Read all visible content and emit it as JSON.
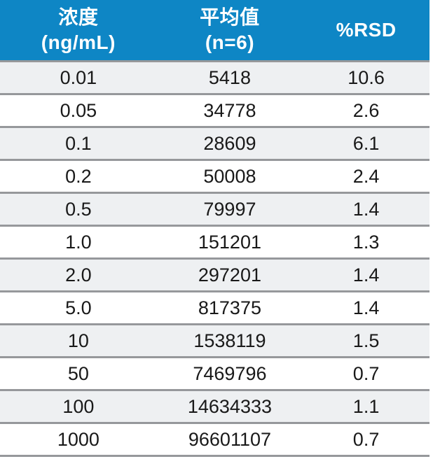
{
  "table": {
    "columns": [
      {
        "id": "concentration",
        "line1": "浓度",
        "line2": "(ng/mL)"
      },
      {
        "id": "mean",
        "line1": "平均值",
        "line2": "(n=6)"
      },
      {
        "id": "rsd",
        "line1": "%RSD",
        "line2": ""
      }
    ],
    "rows": [
      {
        "concentration": "0.01",
        "mean": "5418",
        "rsd": "10.6"
      },
      {
        "concentration": "0.05",
        "mean": "34778",
        "rsd": "2.6"
      },
      {
        "concentration": "0.1",
        "mean": "28609",
        "rsd": "6.1"
      },
      {
        "concentration": "0.2",
        "mean": "50008",
        "rsd": "2.4"
      },
      {
        "concentration": "0.5",
        "mean": "79997",
        "rsd": "1.4"
      },
      {
        "concentration": "1.0",
        "mean": "151201",
        "rsd": "1.3"
      },
      {
        "concentration": "2.0",
        "mean": "297201",
        "rsd": "1.4"
      },
      {
        "concentration": "5.0",
        "mean": "817375",
        "rsd": "1.4"
      },
      {
        "concentration": "10",
        "mean": "1538119",
        "rsd": "1.5"
      },
      {
        "concentration": "50",
        "mean": "7469796",
        "rsd": "0.7"
      },
      {
        "concentration": "100",
        "mean": "14634333",
        "rsd": "1.1"
      },
      {
        "concentration": "1000",
        "mean": "96601107",
        "rsd": "0.7"
      }
    ]
  },
  "colors": {
    "header_bg": "#0e86c5",
    "header_text": "#ffffff",
    "row_alt_bg": "#eef0f2",
    "row_bg": "#ffffff",
    "separator": "#96989b",
    "body_text": "#191919"
  }
}
